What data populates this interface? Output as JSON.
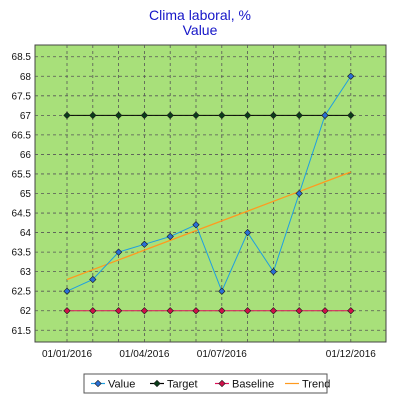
{
  "chart_data": {
    "type": "line",
    "title": "Clima laboral, %",
    "subtitle": "Value",
    "xlabel": "",
    "ylabel": "",
    "ylim": [
      61.2,
      68.8
    ],
    "yticks": [
      61.5,
      62,
      62.5,
      63,
      63.5,
      64,
      64.5,
      65,
      65.5,
      66,
      66.5,
      67,
      67.5,
      68,
      68.5
    ],
    "xticks": [
      "01/01/2016",
      "01/04/2016",
      "01/07/2016",
      "01/12/2016"
    ],
    "xtick_index": [
      0,
      3,
      6,
      11
    ],
    "x": [
      "01/01/2016",
      "01/02/2016",
      "01/03/2016",
      "01/04/2016",
      "01/05/2016",
      "01/06/2016",
      "01/07/2016",
      "01/08/2016",
      "01/09/2016",
      "01/10/2016",
      "01/11/2016",
      "01/12/2016"
    ],
    "grid": true,
    "legend_position": "bottom",
    "plot_background": "#a8e07a",
    "series": [
      {
        "name": "Value",
        "color": "#1f9fe0",
        "marker": "diamond",
        "marker_color": "#2a6fd6",
        "values": [
          62.5,
          62.8,
          63.5,
          63.7,
          63.9,
          64.2,
          62.5,
          64.0,
          63.0,
          65.0,
          67.0,
          68.0
        ]
      },
      {
        "name": "Target",
        "color": "#000000",
        "marker": "diamond",
        "marker_color": "#0b3d1a",
        "values": [
          67,
          67,
          67,
          67,
          67,
          67,
          67,
          67,
          67,
          67,
          67,
          67
        ]
      },
      {
        "name": "Baseline",
        "color": "#e0105a",
        "marker": "diamond",
        "marker_color": "#d0104a",
        "values": [
          62,
          62,
          62,
          62,
          62,
          62,
          62,
          62,
          62,
          62,
          62,
          62
        ]
      },
      {
        "name": "Trend",
        "color": "#ff9a1f",
        "marker": "none",
        "values": [
          62.8,
          63.05,
          63.3,
          63.55,
          63.8,
          64.05,
          64.3,
          64.55,
          64.8,
          65.05,
          65.3,
          65.55
        ]
      }
    ]
  }
}
